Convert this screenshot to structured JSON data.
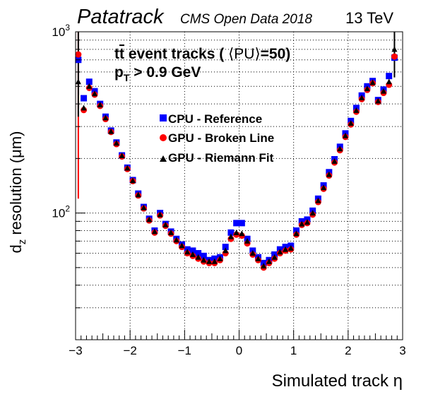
{
  "header": {
    "experiment": "Patatrack",
    "subtitle": "CMS Open Data 2018",
    "energy": "13 TeV"
  },
  "annotations": {
    "line1_prefix": "t",
    "line1_bar": "t",
    "line1_rest": " event tracks ( ",
    "line1_pu": "⟨PU⟩",
    "line1_tail": "=50)",
    "line2_p": "p",
    "line2_sub": "T",
    "line2_rest": " > 0.9 GeV"
  },
  "chart_data": {
    "type": "scatter",
    "title": "",
    "xlabel": "Simulated track η",
    "ylabel_main": "d",
    "ylabel_sub": "z",
    "ylabel_rest": " resolution (μm)",
    "xlim": [
      -3,
      3
    ],
    "ylim": [
      20,
      1000
    ],
    "y_scale": "log",
    "x_ticks": [
      -3,
      -2,
      -1,
      0,
      1,
      2,
      3
    ],
    "x_tick_labels": [
      "−3",
      "−2",
      "−1",
      "0",
      "1",
      "2",
      "3"
    ],
    "y_tick_labels": [
      {
        "value": 100,
        "base": "10",
        "exp": "2"
      },
      {
        "value": 1000,
        "base": "10",
        "exp": "3"
      }
    ],
    "grid": true,
    "legend_position": "top-center",
    "series": [
      {
        "name": "CPU - Reference",
        "marker": "square",
        "color": "#0000ff",
        "x": [
          -2.95,
          -2.85,
          -2.75,
          -2.65,
          -2.55,
          -2.45,
          -2.35,
          -2.25,
          -2.15,
          -2.05,
          -1.95,
          -1.85,
          -1.75,
          -1.65,
          -1.55,
          -1.45,
          -1.35,
          -1.25,
          -1.15,
          -1.05,
          -0.95,
          -0.85,
          -0.75,
          -0.65,
          -0.55,
          -0.45,
          -0.35,
          -0.25,
          -0.15,
          -0.05,
          0.05,
          0.15,
          0.25,
          0.35,
          0.45,
          0.55,
          0.65,
          0.75,
          0.85,
          0.95,
          1.05,
          1.15,
          1.25,
          1.35,
          1.45,
          1.55,
          1.65,
          1.75,
          1.85,
          1.95,
          2.05,
          2.15,
          2.25,
          2.35,
          2.45,
          2.55,
          2.65,
          2.75,
          2.85
        ],
        "y": [
          700,
          430,
          530,
          470,
          400,
          340,
          285,
          245,
          208,
          178,
          152,
          128,
          108,
          93,
          80,
          100,
          87,
          79,
          72,
          67,
          63,
          62,
          60,
          58,
          55,
          56,
          57,
          65,
          78,
          88,
          88,
          72,
          62,
          57,
          53,
          55,
          59,
          63,
          65,
          66,
          80,
          90,
          92,
          103,
          120,
          142,
          168,
          198,
          232,
          275,
          322,
          380,
          445,
          500,
          535,
          420,
          480,
          570,
          720
        ]
      },
      {
        "name": "GPU - Broken Line",
        "marker": "circle",
        "color": "#ff0000",
        "x": [
          -2.95,
          -2.85,
          -2.75,
          -2.65,
          -2.55,
          -2.45,
          -2.35,
          -2.25,
          -2.15,
          -2.05,
          -1.95,
          -1.85,
          -1.75,
          -1.65,
          -1.55,
          -1.45,
          -1.35,
          -1.25,
          -1.15,
          -1.05,
          -0.95,
          -0.85,
          -0.75,
          -0.65,
          -0.55,
          -0.45,
          -0.35,
          -0.25,
          -0.15,
          -0.05,
          0.05,
          0.15,
          0.25,
          0.35,
          0.45,
          0.55,
          0.65,
          0.75,
          0.85,
          0.95,
          1.05,
          1.15,
          1.25,
          1.35,
          1.45,
          1.55,
          1.65,
          1.75,
          1.85,
          1.95,
          2.05,
          2.15,
          2.25,
          2.35,
          2.45,
          2.55,
          2.65,
          2.75,
          2.85
        ],
        "y": [
          750,
          370,
          490,
          450,
          390,
          330,
          280,
          240,
          205,
          175,
          150,
          125,
          106,
          91,
          78,
          97,
          85,
          77,
          70,
          65,
          60,
          58,
          56,
          54,
          53,
          53,
          55,
          60,
          72,
          76,
          75,
          68,
          59,
          55,
          50,
          53,
          56,
          60,
          62,
          63,
          76,
          86,
          88,
          98,
          115,
          136,
          161,
          190,
          222,
          263,
          308,
          362,
          425,
          478,
          520,
          410,
          460,
          510,
          730
        ]
      },
      {
        "name": "GPU - Riemann Fit",
        "marker": "triangle",
        "color": "#000000",
        "x": [
          -2.95,
          -2.85,
          -2.75,
          -2.65,
          -2.55,
          -2.45,
          -2.35,
          -2.25,
          -2.15,
          -2.05,
          -1.95,
          -1.85,
          -1.75,
          -1.65,
          -1.55,
          -1.45,
          -1.35,
          -1.25,
          -1.15,
          -1.05,
          -0.95,
          -0.85,
          -0.75,
          -0.65,
          -0.55,
          -0.45,
          -0.35,
          -0.25,
          -0.15,
          -0.05,
          0.05,
          0.15,
          0.25,
          0.35,
          0.45,
          0.55,
          0.65,
          0.75,
          0.85,
          0.95,
          1.05,
          1.15,
          1.25,
          1.35,
          1.45,
          1.55,
          1.65,
          1.75,
          1.85,
          1.95,
          2.05,
          2.15,
          2.25,
          2.35,
          2.45,
          2.55,
          2.65,
          2.75,
          2.85
        ],
        "y": [
          530,
          380,
          500,
          455,
          395,
          335,
          282,
          243,
          207,
          177,
          151,
          126,
          107,
          92,
          79,
          98,
          86,
          78,
          71,
          66,
          61,
          59,
          57,
          55,
          54,
          54,
          56,
          62,
          74,
          78,
          77,
          70,
          60,
          56,
          51,
          54,
          57,
          61,
          63,
          64,
          77,
          87,
          89,
          100,
          117,
          138,
          163,
          193,
          226,
          267,
          313,
          368,
          432,
          485,
          525,
          415,
          470,
          530,
          800
        ]
      }
    ],
    "error_bars": [
      {
        "series": "GPU - Broken Line",
        "x": -2.95,
        "low": 120,
        "high": 1000
      },
      {
        "series": "GPU - Riemann Fit",
        "x": -2.95,
        "low": 340,
        "high": 1000
      },
      {
        "series": "GPU - Riemann Fit",
        "x": 2.85,
        "low": 560,
        "high": 1000
      }
    ]
  }
}
